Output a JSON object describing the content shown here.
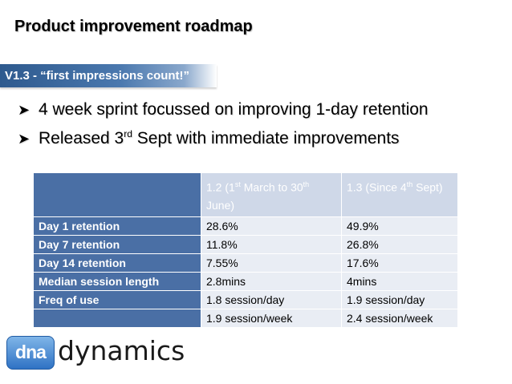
{
  "slide": {
    "title": "Product improvement roadmap",
    "banner": "V1.3 - “first impressions count!”",
    "bullets": [
      {
        "text": "4 week sprint focussed on improving 1-day retention"
      },
      {
        "prefix": "Released 3",
        "sup": "rd",
        "suffix": " Sept with immediate improvements"
      }
    ],
    "arrow_icon": "arrow-bullet-icon"
  },
  "table": {
    "headers": [
      {
        "text": ""
      },
      {
        "prefix": "1.2 (1",
        "sup": "st",
        "suffix": " March to 30",
        "sup2": "th",
        "suffix2": " June)"
      },
      {
        "prefix": "1.3 (Since 4",
        "sup": "th",
        "suffix": " Sept)"
      }
    ],
    "rows": [
      {
        "label": "Day 1 retention",
        "v12": "28.6%",
        "v13": "49.9%"
      },
      {
        "label": "Day 7 retention",
        "v12": "11.8%",
        "v13": "26.8%"
      },
      {
        "label": "Day 14 retention",
        "v12": "7.55%",
        "v13": "17.6%"
      },
      {
        "label": "Median session length",
        "v12": "2.8mins",
        "v13": "4mins"
      },
      {
        "label": "Freq of use",
        "v12": "1.8 session/day",
        "v13": "1.9 session/day"
      },
      {
        "label": "",
        "v12": "1.9 session/week",
        "v13": "2.4 session/week"
      }
    ],
    "colors": {
      "label_bg": "#4a6fa5",
      "cell_bg": "#e9edf4",
      "header_bg": "#cfd8e8"
    }
  },
  "logo": {
    "mark": "dna",
    "text": "dynamics",
    "icon": "dna-dynamics-logo"
  },
  "colors": {
    "banner": "#2e5a8e",
    "text": "#000000"
  }
}
